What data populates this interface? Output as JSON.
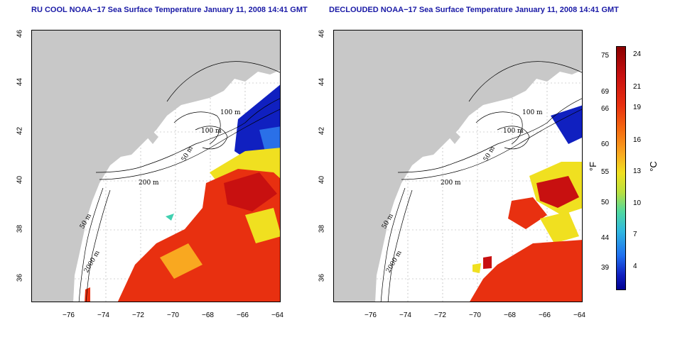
{
  "left_map": {
    "title": "RU COOL NOAA−17 Sea Surface Temperature January 11, 2008 14:41 GMT",
    "contour_labels": [
      "100 m",
      "100 m",
      "50 m",
      "200 m",
      "50 m",
      "2000 m"
    ]
  },
  "right_map": {
    "title": "DECLOUDED NOAA−17 Sea Surface Temperature January 11, 2008 14:41 GMT",
    "contour_labels": [
      "100 m",
      "100 m",
      "50 m",
      "200 m",
      "50 m",
      "2000 m"
    ]
  },
  "axes": {
    "x_ticks": [
      "−76",
      "−74",
      "−72",
      "−70",
      "−68",
      "−66",
      "−64"
    ],
    "y_ticks": [
      "46",
      "44",
      "42",
      "40",
      "38",
      "36"
    ]
  },
  "colorbar": {
    "fahrenheit_ticks": [
      "75",
      "69",
      "66",
      "60",
      "55",
      "50",
      "44",
      "39"
    ],
    "celsius_ticks": [
      "24",
      "21",
      "19",
      "16",
      "13",
      "10",
      "7",
      "4"
    ],
    "fahrenheit_unit": "°F",
    "celsius_unit": "°C"
  },
  "colors": {
    "land": "#c8c8c8",
    "title": "#1a1aa6",
    "warm": "#e83010",
    "cold": "#1020c0"
  }
}
